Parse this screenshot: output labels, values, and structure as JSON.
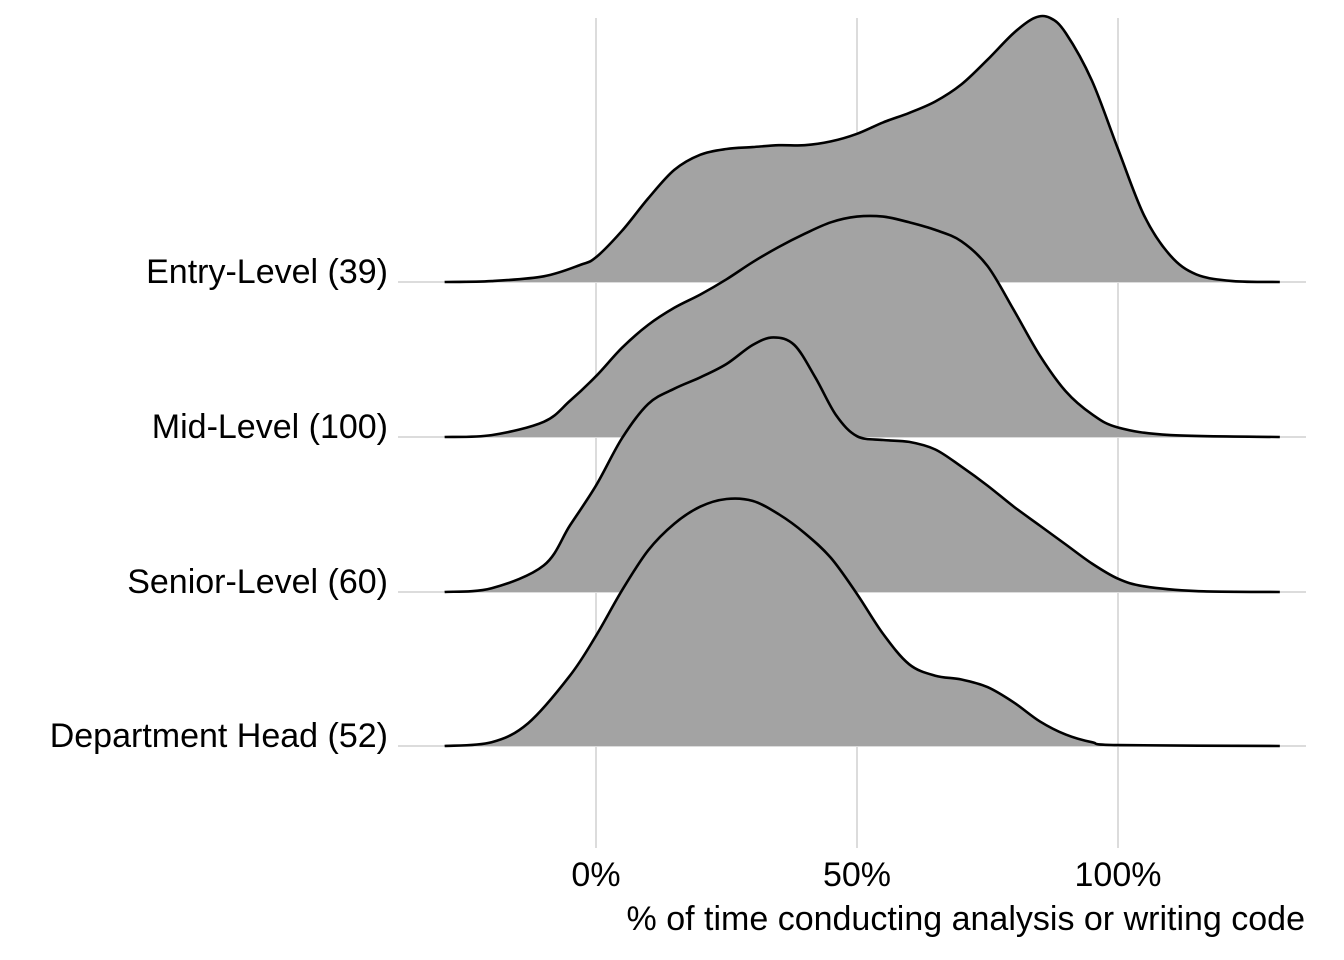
{
  "chart_data": {
    "type": "ridgeline",
    "title": "",
    "xlabel": "% of time conducting analysis or writing code",
    "ylabel": "",
    "x_range": [
      -0.29,
      1.31
    ],
    "xlim": [
      -0.38,
      1.38
    ],
    "x_ticks": [
      {
        "value": 0,
        "label": "0%"
      },
      {
        "value": 0.5,
        "label": "50%"
      },
      {
        "value": 1,
        "label": "100%"
      }
    ],
    "fill_color": "#a3a3a3",
    "line_color": "#000000",
    "grid_color": "#dcdcdc",
    "grid": true,
    "legend": "none",
    "series": [
      {
        "label": "Entry-Level (39)",
        "points": [
          [
            -0.29,
            0
          ],
          [
            -0.2,
            0.005
          ],
          [
            -0.1,
            0.03
          ],
          [
            -0.03,
            0.09
          ],
          [
            0,
            0.13
          ],
          [
            0.05,
            0.27
          ],
          [
            0.1,
            0.44
          ],
          [
            0.15,
            0.59
          ],
          [
            0.2,
            0.67
          ],
          [
            0.25,
            0.7
          ],
          [
            0.3,
            0.71
          ],
          [
            0.35,
            0.72
          ],
          [
            0.4,
            0.72
          ],
          [
            0.45,
            0.74
          ],
          [
            0.5,
            0.78
          ],
          [
            0.55,
            0.84
          ],
          [
            0.6,
            0.89
          ],
          [
            0.65,
            0.95
          ],
          [
            0.7,
            1.04
          ],
          [
            0.75,
            1.17
          ],
          [
            0.8,
            1.31
          ],
          [
            0.84,
            1.39
          ],
          [
            0.87,
            1.39
          ],
          [
            0.9,
            1.31
          ],
          [
            0.95,
            1.06
          ],
          [
            1,
            0.7
          ],
          [
            1.05,
            0.35
          ],
          [
            1.1,
            0.14
          ],
          [
            1.15,
            0.04
          ],
          [
            1.22,
            0.005
          ],
          [
            1.31,
            0
          ]
        ]
      },
      {
        "label": "Mid-Level (100)",
        "points": [
          [
            -0.29,
            0
          ],
          [
            -0.2,
            0.01
          ],
          [
            -0.1,
            0.08
          ],
          [
            -0.05,
            0.19
          ],
          [
            0,
            0.32
          ],
          [
            0.05,
            0.47
          ],
          [
            0.1,
            0.59
          ],
          [
            0.15,
            0.68
          ],
          [
            0.2,
            0.75
          ],
          [
            0.25,
            0.83
          ],
          [
            0.3,
            0.92
          ],
          [
            0.35,
            1.0
          ],
          [
            0.4,
            1.07
          ],
          [
            0.45,
            1.13
          ],
          [
            0.5,
            1.16
          ],
          [
            0.55,
            1.16
          ],
          [
            0.6,
            1.13
          ],
          [
            0.65,
            1.09
          ],
          [
            0.7,
            1.03
          ],
          [
            0.75,
            0.9
          ],
          [
            0.8,
            0.67
          ],
          [
            0.85,
            0.43
          ],
          [
            0.9,
            0.24
          ],
          [
            0.95,
            0.12
          ],
          [
            1,
            0.05
          ],
          [
            1.1,
            0.01
          ],
          [
            1.31,
            0
          ]
        ]
      },
      {
        "label": "Senior-Level (60)",
        "points": [
          [
            -0.29,
            0
          ],
          [
            -0.2,
            0.02
          ],
          [
            -0.1,
            0.14
          ],
          [
            -0.05,
            0.35
          ],
          [
            0,
            0.56
          ],
          [
            0.05,
            0.81
          ],
          [
            0.1,
            0.99
          ],
          [
            0.15,
            1.07
          ],
          [
            0.2,
            1.13
          ],
          [
            0.25,
            1.2
          ],
          [
            0.3,
            1.3
          ],
          [
            0.34,
            1.34
          ],
          [
            0.38,
            1.3
          ],
          [
            0.42,
            1.13
          ],
          [
            0.46,
            0.93
          ],
          [
            0.5,
            0.82
          ],
          [
            0.55,
            0.8
          ],
          [
            0.6,
            0.79
          ],
          [
            0.65,
            0.75
          ],
          [
            0.7,
            0.66
          ],
          [
            0.75,
            0.56
          ],
          [
            0.8,
            0.45
          ],
          [
            0.85,
            0.35
          ],
          [
            0.9,
            0.25
          ],
          [
            0.95,
            0.15
          ],
          [
            1,
            0.07
          ],
          [
            1.05,
            0.03
          ],
          [
            1.15,
            0.005
          ],
          [
            1.31,
            0
          ]
        ]
      },
      {
        "label": "Department Head (52)",
        "points": [
          [
            -0.29,
            0
          ],
          [
            -0.2,
            0.02
          ],
          [
            -0.13,
            0.12
          ],
          [
            -0.05,
            0.37
          ],
          [
            0,
            0.58
          ],
          [
            0.05,
            0.82
          ],
          [
            0.1,
            1.03
          ],
          [
            0.15,
            1.17
          ],
          [
            0.2,
            1.26
          ],
          [
            0.25,
            1.3
          ],
          [
            0.3,
            1.29
          ],
          [
            0.35,
            1.22
          ],
          [
            0.4,
            1.12
          ],
          [
            0.45,
            0.99
          ],
          [
            0.5,
            0.8
          ],
          [
            0.55,
            0.59
          ],
          [
            0.6,
            0.43
          ],
          [
            0.65,
            0.37
          ],
          [
            0.7,
            0.35
          ],
          [
            0.75,
            0.31
          ],
          [
            0.8,
            0.23
          ],
          [
            0.85,
            0.13
          ],
          [
            0.9,
            0.06
          ],
          [
            0.95,
            0.02
          ],
          [
            1,
            0.005
          ],
          [
            1.31,
            0
          ]
        ]
      }
    ]
  }
}
